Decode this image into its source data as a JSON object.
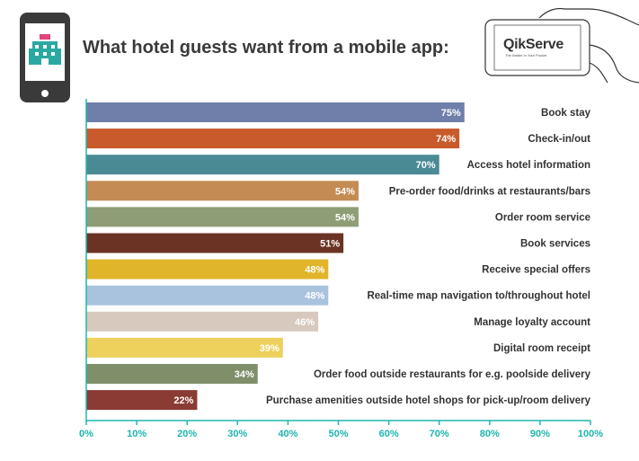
{
  "title": "What hotel guests want from a mobile app:",
  "brand": {
    "name": "QikServe",
    "tagline": "The Waiter In Your Pocket"
  },
  "chart_data": {
    "type": "bar",
    "orientation": "horizontal",
    "title": "What hotel guests want from a mobile app:",
    "xlim": [
      0,
      100
    ],
    "x_ticks": [
      "0%",
      "10%",
      "20%",
      "30%",
      "40%",
      "50%",
      "60%",
      "70%",
      "80%",
      "90%",
      "100%"
    ],
    "categories": [
      "Book stay",
      "Check-in/out",
      "Access hotel information",
      "Pre-order food/drinks at restaurants/bars",
      "Order room service",
      "Book services",
      "Receive special offers",
      "Real-time map navigation to/throughout hotel",
      "Manage loyalty account",
      "Digital room receipt",
      "Order food outside restaurants for e.g. poolside delivery",
      "Purchase amenities outside hotel shops for pick-up/room delivery"
    ],
    "values": [
      75,
      74,
      70,
      54,
      54,
      51,
      48,
      48,
      46,
      39,
      34,
      22
    ],
    "value_labels": [
      "75%",
      "74%",
      "70%",
      "54%",
      "54%",
      "51%",
      "48%",
      "48%",
      "46%",
      "39%",
      "34%",
      "22%"
    ],
    "colors": [
      "#6f7fa9",
      "#c95a2b",
      "#4a8a95",
      "#c48b55",
      "#8f9d77",
      "#6b3324",
      "#e0b52a",
      "#a9c2de",
      "#d7c9bd",
      "#edd15c",
      "#7f8f6a",
      "#8a3b33"
    ],
    "axis_color": "#1fb5ad",
    "grid": false,
    "legend": "none"
  }
}
